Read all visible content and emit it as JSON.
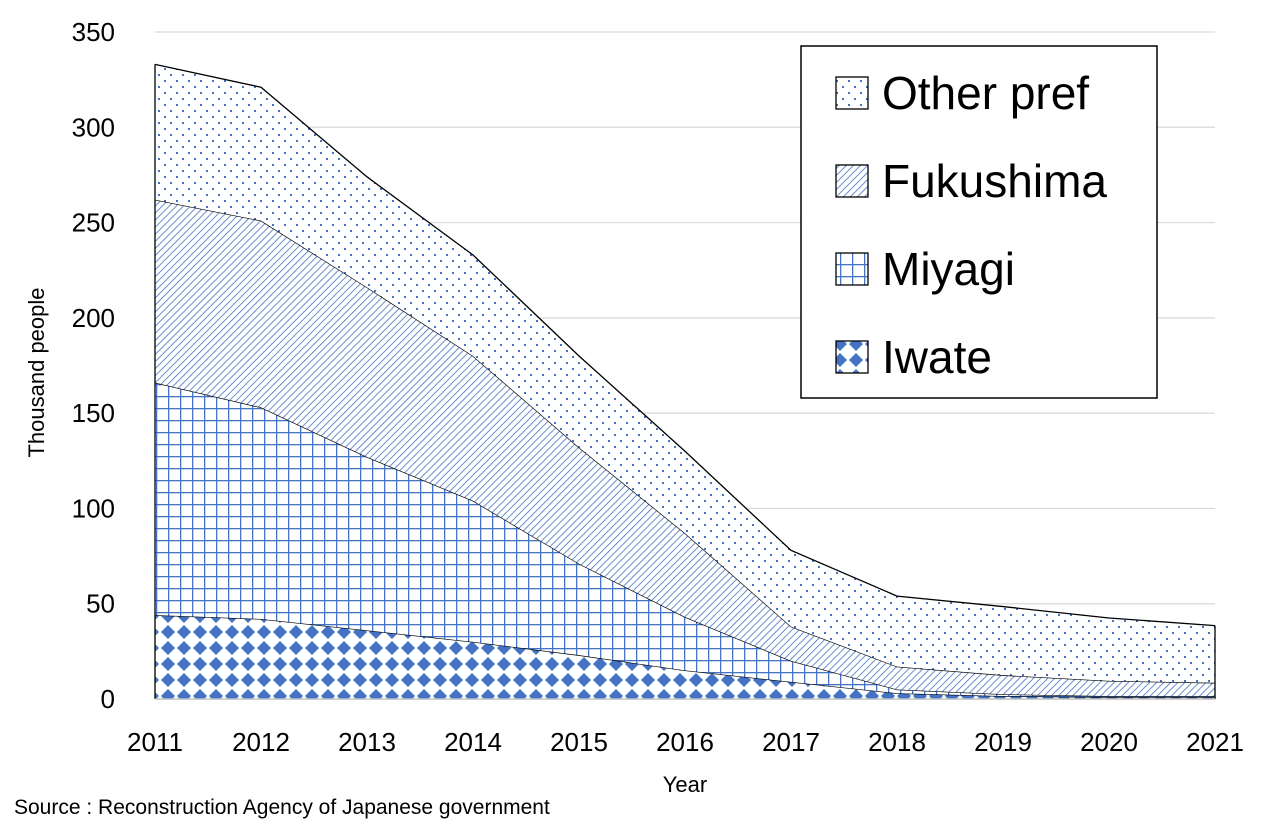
{
  "chart_data": {
    "type": "area",
    "stacked": true,
    "x": [
      2011,
      2012,
      2013,
      2014,
      2015,
      2016,
      2017,
      2018,
      2019,
      2020,
      2021
    ],
    "series": [
      {
        "name": "Iwate",
        "values": [
          44,
          42,
          36,
          30,
          23,
          15,
          9,
          3,
          1.5,
          1,
          1
        ],
        "color": "#4472c4",
        "pattern": "diamond"
      },
      {
        "name": "Miyagi",
        "values": [
          122,
          111,
          91,
          74,
          48,
          28,
          11,
          2,
          1,
          0.5,
          0.5
        ],
        "color": "#4472c4",
        "pattern": "grid"
      },
      {
        "name": "Fukushima",
        "values": [
          96,
          98,
          89,
          76,
          61,
          44,
          18,
          12,
          10,
          8,
          7
        ],
        "color": "#4472c4",
        "pattern": "diagonal"
      },
      {
        "name": "Other pref",
        "values": [
          71,
          70,
          58,
          53,
          48,
          43,
          40,
          37,
          36,
          33,
          30
        ],
        "color": "#4472c4",
        "pattern": "dots"
      }
    ],
    "ylim": [
      0,
      350
    ],
    "yticks": [
      "0",
      "50",
      "100",
      "150",
      "200",
      "250",
      "300",
      "350"
    ],
    "xlabel": "Year",
    "ylabel": "Thousand people",
    "legend_order": [
      "Other pref",
      "Fukushima",
      "Miyagi",
      "Iwate"
    ],
    "legend_position": "top-right",
    "grid": true
  },
  "source": "Source : Reconstruction Agency of Japanese government"
}
